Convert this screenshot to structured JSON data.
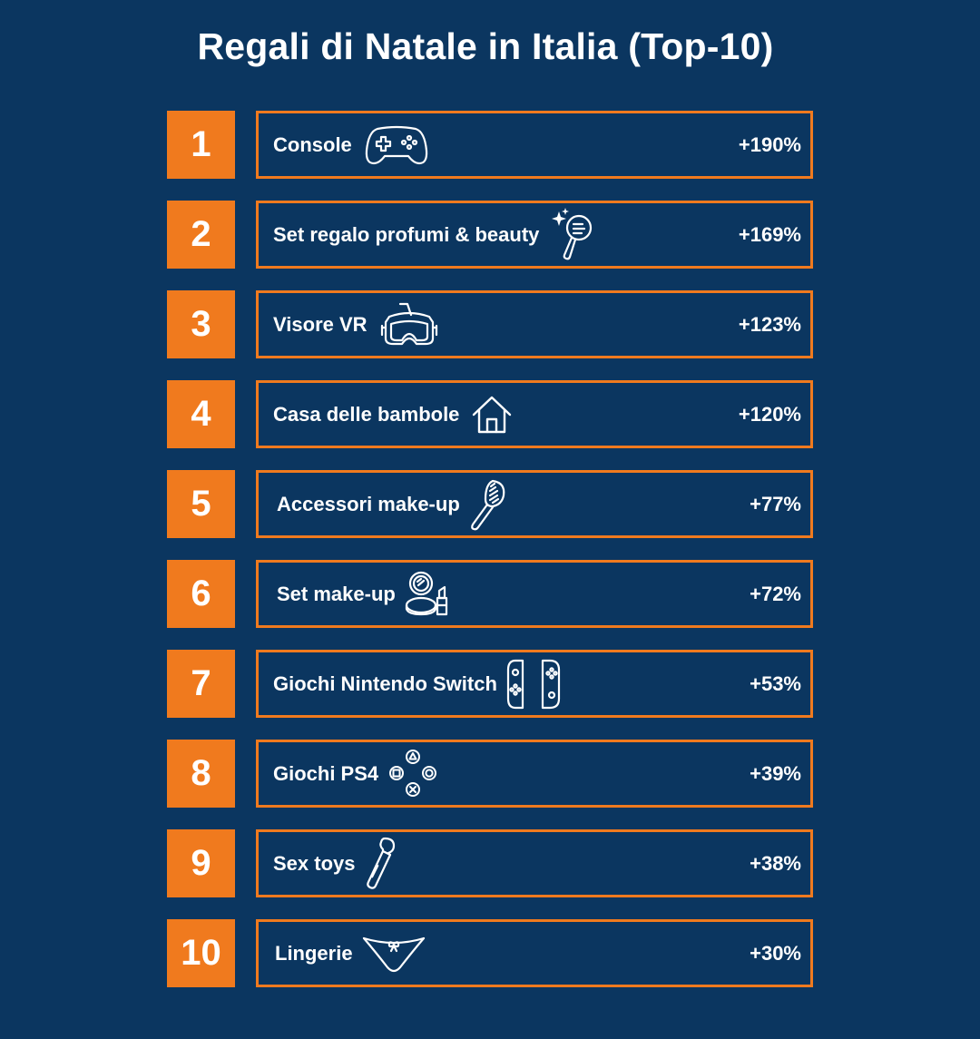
{
  "title": "Regali di Natale in Italia (Top-10)",
  "colors": {
    "background": "#0b3660",
    "accent": "#f07a1e",
    "text": "#ffffff"
  },
  "items": [
    {
      "rank": "1",
      "label": "Console",
      "value": "+190%",
      "icon": "game-controller-icon"
    },
    {
      "rank": "2",
      "label": "Set regalo profumi & beauty",
      "value": "+169%",
      "icon": "beauty-mirror-icon"
    },
    {
      "rank": "3",
      "label": "Visore VR",
      "value": "+123%",
      "icon": "vr-headset-icon"
    },
    {
      "rank": "4",
      "label": "Casa delle bambole",
      "value": "+120%",
      "icon": "house-icon"
    },
    {
      "rank": "5",
      "label": "Accessori make-up",
      "value": "+77%",
      "icon": "hairbrush-icon"
    },
    {
      "rank": "6",
      "label": "Set make-up",
      "value": "+72%",
      "icon": "compact-lipstick-icon"
    },
    {
      "rank": "7",
      "label": "Giochi Nintendo Switch",
      "value": "+53%",
      "icon": "joycon-icon"
    },
    {
      "rank": "8",
      "label": "Giochi PS4",
      "value": "+39%",
      "icon": "ps-buttons-icon"
    },
    {
      "rank": "9",
      "label": "Sex toys",
      "value": "+38%",
      "icon": "wand-massager-icon"
    },
    {
      "rank": "10",
      "label": "Lingerie",
      "value": "+30%",
      "icon": "lingerie-icon"
    }
  ]
}
